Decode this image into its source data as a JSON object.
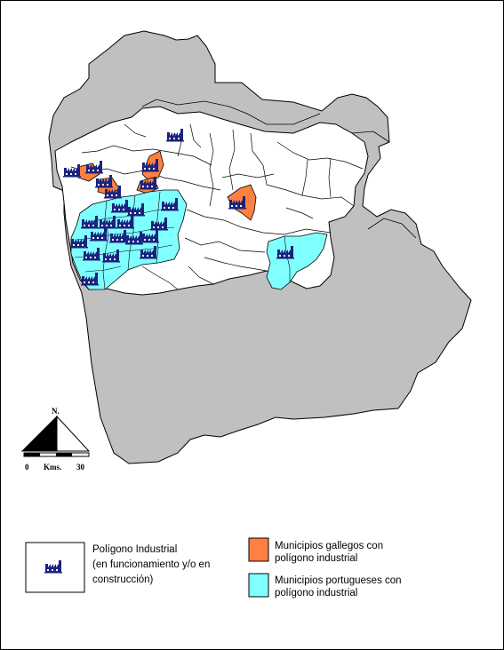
{
  "colors": {
    "background": "#ffffff",
    "outside_region": "#c0c0c0",
    "municipality": "#ffffff",
    "galician_municipality": "#ff8040",
    "portuguese_municipality": "#80ffff",
    "boundary": "#000000",
    "factory_icon": "#1a237e"
  },
  "scale": {
    "north_label": "N.",
    "start_label": "0",
    "unit_label": "Kms.",
    "end_label": "30"
  },
  "legend": {
    "industrial_park": {
      "icon": "factory-icon",
      "lines": [
        "Polígono Industrial",
        "(en funcionamiento y/o en",
        "construcción)"
      ]
    },
    "galician": {
      "color": "#ff8040",
      "lines": [
        "Municipios gallegos con",
        "polígono industrial"
      ]
    },
    "portuguese": {
      "color": "#80ffff",
      "lines": [
        "Municipios portugueses con",
        "polígono industrial"
      ]
    }
  },
  "map": {
    "industrial_park_count": 25
  }
}
